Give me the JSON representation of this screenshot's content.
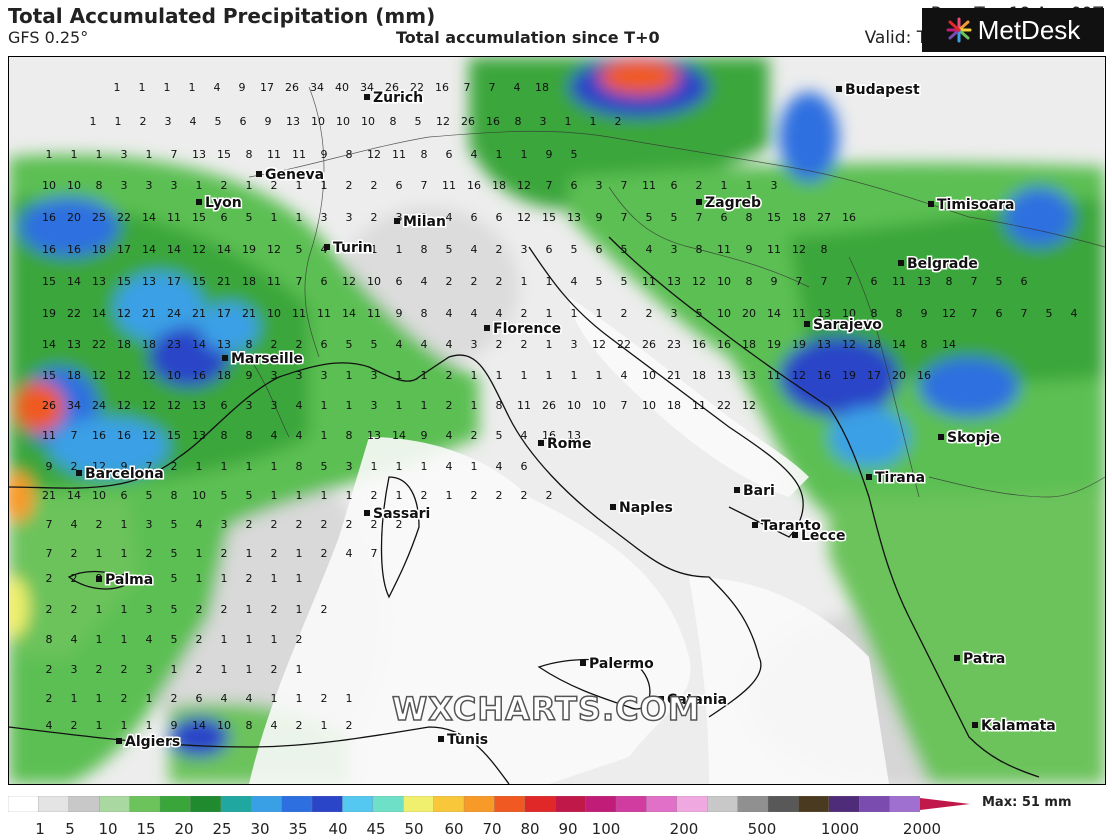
{
  "header": {
    "title": "Total Accumulated Precipitation (mm)",
    "model": "GFS 0.25°",
    "subtitle": "Total accumulation since T+0",
    "run": "Run: Tue 19 Apr 00Z",
    "valid": "Valid: Thu 21 Apr 00:00 UTC"
  },
  "logo": {
    "text": "MetDesk",
    "icon": "starburst-logo-icon"
  },
  "watermark": "WXCHARTS.COM",
  "cities": [
    {
      "name": "Zurich"
    },
    {
      "name": "Budapest"
    },
    {
      "name": "Geneva"
    },
    {
      "name": "Lyon"
    },
    {
      "name": "Zagreb"
    },
    {
      "name": "Timisoara"
    },
    {
      "name": "Milan"
    },
    {
      "name": "Turin"
    },
    {
      "name": "Belgrade"
    },
    {
      "name": "Florence"
    },
    {
      "name": "Sarajevo"
    },
    {
      "name": "Marseille"
    },
    {
      "name": "Rome"
    },
    {
      "name": "Skopje"
    },
    {
      "name": "Barcelona"
    },
    {
      "name": "Tirana"
    },
    {
      "name": "Bari"
    },
    {
      "name": "Naples"
    },
    {
      "name": "Sassari"
    },
    {
      "name": "Taranto"
    },
    {
      "name": "Lecce"
    },
    {
      "name": "Palma"
    },
    {
      "name": "Palermo"
    },
    {
      "name": "Patra"
    },
    {
      "name": "Catania"
    },
    {
      "name": "Kalamata"
    },
    {
      "name": "Tunis"
    },
    {
      "name": "Algiers"
    }
  ],
  "precip_values": [
    [
      "1",
      "1",
      "1",
      "1",
      "4",
      "9",
      "17",
      "26",
      "34",
      "40",
      "34",
      "26",
      "22",
      "16",
      "7",
      "7",
      "4",
      "18"
    ],
    [
      "1",
      "1",
      "2",
      "3",
      "4",
      "5",
      "6",
      "9",
      "13",
      "10",
      "10",
      "10",
      "8",
      "5",
      "12",
      "26",
      "16",
      "8",
      "3",
      "1",
      "1",
      "2"
    ],
    [
      "1",
      "1",
      "1",
      "3",
      "1",
      "7",
      "13",
      "15",
      "8",
      "11",
      "11",
      "9",
      "8",
      "12",
      "11",
      "8",
      "6",
      "4",
      "1",
      "1",
      "9",
      "5"
    ],
    [
      "10",
      "10",
      "8",
      "3",
      "3",
      "3",
      "1",
      "2",
      "1",
      "2",
      "1",
      "1",
      "2",
      "2",
      "6",
      "7",
      "11",
      "16",
      "18",
      "12",
      "7",
      "6",
      "3",
      "7",
      "11",
      "6",
      "2",
      "1",
      "1",
      "3"
    ],
    [
      "16",
      "20",
      "25",
      "22",
      "14",
      "11",
      "15",
      "6",
      "5",
      "1",
      "1",
      "3",
      "3",
      "2",
      "3",
      "3",
      "4",
      "6",
      "6",
      "12",
      "15",
      "13",
      "9",
      "7",
      "5",
      "5",
      "7",
      "6",
      "8",
      "15",
      "18",
      "27",
      "16"
    ],
    [
      "16",
      "16",
      "18",
      "17",
      "14",
      "14",
      "12",
      "14",
      "19",
      "12",
      "5",
      "4",
      "8",
      "1",
      "1",
      "8",
      "5",
      "4",
      "2",
      "3",
      "6",
      "5",
      "6",
      "5",
      "4",
      "3",
      "8",
      "11",
      "9",
      "11",
      "12",
      "8"
    ],
    [
      "15",
      "14",
      "13",
      "15",
      "13",
      "17",
      "15",
      "21",
      "18",
      "11",
      "7",
      "6",
      "12",
      "10",
      "6",
      "4",
      "2",
      "2",
      "2",
      "1",
      "1",
      "4",
      "5",
      "5",
      "11",
      "13",
      "12",
      "10",
      "8",
      "9",
      "7",
      "7",
      "7",
      "6",
      "11",
      "13",
      "8",
      "7",
      "5",
      "6"
    ],
    [
      "19",
      "22",
      "14",
      "12",
      "21",
      "24",
      "21",
      "17",
      "21",
      "10",
      "11",
      "11",
      "14",
      "11",
      "9",
      "8",
      "4",
      "4",
      "4",
      "2",
      "1",
      "1",
      "1",
      "2",
      "2",
      "3",
      "5",
      "10",
      "20",
      "14",
      "11",
      "13",
      "10",
      "8",
      "8",
      "9",
      "12",
      "7",
      "6",
      "7",
      "5",
      "4"
    ],
    [
      "14",
      "13",
      "22",
      "18",
      "18",
      "23",
      "14",
      "13",
      "8",
      "2",
      "2",
      "6",
      "5",
      "5",
      "4",
      "4",
      "4",
      "3",
      "2",
      "2",
      "1",
      "3",
      "12",
      "22",
      "26",
      "23",
      "16",
      "16",
      "18",
      "19",
      "19",
      "13",
      "12",
      "18",
      "14",
      "8",
      "14"
    ],
    [
      "15",
      "18",
      "12",
      "12",
      "12",
      "10",
      "16",
      "18",
      "9",
      "3",
      "3",
      "3",
      "1",
      "3",
      "1",
      "1",
      "2",
      "1",
      "1",
      "1",
      "1",
      "1",
      "1",
      "4",
      "10",
      "21",
      "18",
      "13",
      "13",
      "11",
      "12",
      "16",
      "19",
      "17",
      "20",
      "16"
    ],
    [
      "26",
      "34",
      "24",
      "12",
      "12",
      "12",
      "13",
      "6",
      "3",
      "3",
      "4",
      "1",
      "1",
      "3",
      "1",
      "1",
      "2",
      "1",
      "8",
      "11",
      "26",
      "10",
      "10",
      "7",
      "10",
      "18",
      "11",
      "22",
      "12"
    ],
    [
      "11",
      "7",
      "16",
      "16",
      "12",
      "15",
      "13",
      "8",
      "8",
      "4",
      "4",
      "1",
      "8",
      "13",
      "14",
      "9",
      "4",
      "2",
      "5",
      "4",
      "16",
      "13"
    ],
    [
      "9",
      "2",
      "12",
      "9",
      "7",
      "2",
      "1",
      "1",
      "1",
      "1",
      "8",
      "5",
      "3",
      "1",
      "1",
      "1",
      "4",
      "1",
      "4",
      "6"
    ],
    [
      "21",
      "14",
      "10",
      "6",
      "5",
      "8",
      "10",
      "5",
      "5",
      "1",
      "1",
      "1",
      "1",
      "2",
      "1",
      "2",
      "1",
      "2",
      "2",
      "2",
      "2"
    ],
    [
      "7",
      "4",
      "2",
      "1",
      "3",
      "5",
      "4",
      "3",
      "2",
      "2",
      "2",
      "2",
      "2",
      "2",
      "2"
    ],
    [
      "7",
      "2",
      "1",
      "1",
      "2",
      "5",
      "1",
      "2",
      "1",
      "2",
      "1",
      "2",
      "4",
      "7"
    ],
    [
      "2",
      "2",
      "9",
      "2",
      "3",
      "5",
      "1",
      "1",
      "2",
      "1",
      "1"
    ],
    [
      "2",
      "2",
      "1",
      "1",
      "3",
      "5",
      "2",
      "2",
      "1",
      "2",
      "1",
      "2"
    ],
    [
      "8",
      "4",
      "1",
      "1",
      "4",
      "5",
      "2",
      "1",
      "1",
      "1",
      "2"
    ],
    [
      "2",
      "3",
      "2",
      "2",
      "3",
      "1",
      "2",
      "1",
      "1",
      "2",
      "1"
    ],
    [
      "2",
      "1",
      "1",
      "2",
      "1",
      "2",
      "6",
      "4",
      "4",
      "1",
      "1",
      "2",
      "1"
    ],
    [
      "4",
      "2",
      "1",
      "1",
      "1",
      "9",
      "14",
      "10",
      "8",
      "4",
      "2",
      "1",
      "2"
    ]
  ],
  "legend": {
    "tick_labels": [
      "1",
      "5",
      "10",
      "15",
      "20",
      "25",
      "30",
      "35",
      "40",
      "45",
      "50",
      "60",
      "70",
      "80",
      "90",
      "100",
      "200",
      "500",
      "1000",
      "2000"
    ],
    "max_label": "Max: 51 mm",
    "colors": [
      "#ffffff",
      "#e4e4e4",
      "#c8c8c8",
      "#a9d8a0",
      "#6cc35c",
      "#3aa63a",
      "#1f8a2e",
      "#1fa7a0",
      "#3aa0e6",
      "#2d6fe0",
      "#2a45c8",
      "#54c8f0",
      "#6ee0c8",
      "#f0f06e",
      "#f8c83a",
      "#f89a28",
      "#f05a22",
      "#e02828",
      "#c01848",
      "#c01c78",
      "#d03ca0",
      "#e070c8",
      "#f0a8e0",
      "#c8c8c8",
      "#909090",
      "#585858",
      "#4a3a20",
      "#4e2c7a",
      "#7a4cb0",
      "#a070d0"
    ]
  }
}
